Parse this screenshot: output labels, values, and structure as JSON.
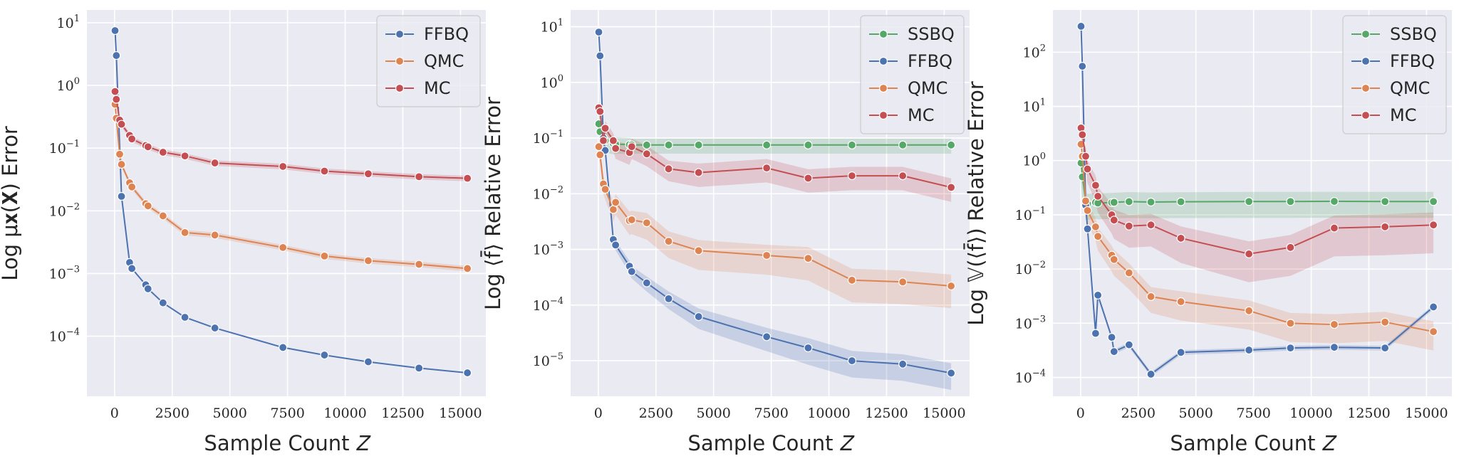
{
  "colors": {
    "SSBQ": "#55a868",
    "FFBQ": "#4c72b0",
    "QMC": "#dd8452",
    "MC": "#c44e52",
    "panel_bg": "#eaeaf2",
    "grid": "#ffffff"
  },
  "chart_data": [
    {
      "type": "line",
      "yscale": "log",
      "xlim": [
        -1200,
        16100
      ],
      "ylim": [
        1.1e-05,
        16
      ],
      "x_ticks": [
        "0",
        "2500",
        "5000",
        "7500",
        "10000",
        "12500",
        "15000"
      ],
      "y_ticks": [
        {
          "base": "10",
          "exp": "−4"
        },
        {
          "base": "10",
          "exp": "−3"
        },
        {
          "base": "10",
          "exp": "−2"
        },
        {
          "base": "10",
          "exp": "−1"
        },
        {
          "base": "10",
          "exp": "0"
        },
        {
          "base": "10",
          "exp": "1"
        }
      ],
      "xlabel": "Sample Count 𝑍",
      "ylabel": "Log μ𝐱(𝐗) Error",
      "legend": "top-right",
      "grid": true,
      "series": [
        {
          "name": "FFBQ",
          "x": [
            20,
            75,
            300,
            650,
            750,
            1350,
            1450,
            2100,
            3050,
            4350,
            7300,
            9100,
            11000,
            13200,
            15300
          ],
          "y": [
            7.5,
            3,
            0.017,
            0.0015,
            0.0012,
            0.00066,
            0.00057,
            0.00034,
            0.0002,
            0.000135,
            6.6e-05,
            5e-05,
            3.9e-05,
            3.1e-05,
            2.6e-05
          ],
          "band": []
        },
        {
          "name": "QMC",
          "x": [
            20,
            75,
            220,
            300,
            650,
            750,
            1350,
            1450,
            2100,
            3050,
            4350,
            7300,
            9100,
            11000,
            13200,
            15300
          ],
          "y": [
            0.5,
            0.3,
            0.08,
            0.055,
            0.028,
            0.024,
            0.013,
            0.012,
            0.0083,
            0.0045,
            0.0041,
            0.0026,
            0.0019,
            0.0016,
            0.0014,
            0.0012
          ],
          "band": [
            0.08,
            0.1
          ]
        },
        {
          "name": "MC",
          "x": [
            20,
            75,
            220,
            300,
            650,
            750,
            1350,
            1450,
            2100,
            3050,
            4350,
            7300,
            9100,
            11000,
            13200,
            15300
          ],
          "y": [
            0.8,
            0.6,
            0.28,
            0.24,
            0.16,
            0.14,
            0.11,
            0.105,
            0.086,
            0.075,
            0.058,
            0.051,
            0.043,
            0.039,
            0.035,
            0.033
          ],
          "band": [
            0.08,
            0.1
          ]
        }
      ]
    },
    {
      "type": "line",
      "yscale": "log",
      "xlim": [
        -1200,
        16100
      ],
      "ylim": [
        2.3e-06,
        20
      ],
      "x_ticks": [
        "0",
        "2500",
        "5000",
        "7500",
        "10000",
        "12500",
        "15000"
      ],
      "y_ticks": [
        {
          "base": "10",
          "exp": "−5"
        },
        {
          "base": "10",
          "exp": "−4"
        },
        {
          "base": "10",
          "exp": "−3"
        },
        {
          "base": "10",
          "exp": "−2"
        },
        {
          "base": "10",
          "exp": "−1"
        },
        {
          "base": "10",
          "exp": "0"
        },
        {
          "base": "10",
          "exp": "1"
        }
      ],
      "xlabel": "Sample Count 𝑍",
      "ylabel": "Log ⟨f̄⟩ Relative Error",
      "legend": "top-right",
      "grid": true,
      "series": [
        {
          "name": "SSBQ",
          "x": [
            20,
            75,
            220,
            300,
            650,
            750,
            1350,
            1450,
            2100,
            3050,
            4350,
            7300,
            9100,
            11000,
            13200,
            15300
          ],
          "y": [
            0.18,
            0.13,
            0.1,
            0.09,
            0.08,
            0.078,
            0.076,
            0.075,
            0.075,
            0.075,
            0.075,
            0.075,
            0.075,
            0.075,
            0.075,
            0.075
          ],
          "band": [
            0.5,
            0.5,
            0.45,
            0.4,
            0.36,
            0.33,
            0.32,
            0.3,
            0.3,
            0.3,
            0.3,
            0.3,
            0.3,
            0.3,
            0.3,
            0.3
          ]
        },
        {
          "name": "FFBQ",
          "x": [
            20,
            75,
            220,
            300,
            650,
            750,
            1350,
            1450,
            2100,
            3050,
            4350,
            7300,
            9100,
            11000,
            13200,
            15300
          ],
          "y": [
            8,
            3,
            0.1,
            0.06,
            0.0015,
            0.0012,
            0.0005,
            0.0004,
            0.00025,
            0.00013,
            6.2e-05,
            2.7e-05,
            1.7e-05,
            1e-05,
            8.7e-06,
            6e-06
          ],
          "band": [
            0.1,
            0.1,
            0.15,
            0.15,
            0.2,
            0.2,
            0.25,
            0.25,
            0.3,
            0.35,
            0.4,
            0.45,
            0.5,
            0.5,
            0.5,
            0.5
          ]
        },
        {
          "name": "QMC",
          "x": [
            20,
            75,
            220,
            300,
            650,
            750,
            1350,
            1450,
            2100,
            3050,
            4350,
            7300,
            9100,
            11000,
            13200,
            15300
          ],
          "y": [
            0.07,
            0.05,
            0.015,
            0.012,
            0.0052,
            0.007,
            0.0033,
            0.0034,
            0.003,
            0.0014,
            0.00095,
            0.00078,
            0.00069,
            0.00028,
            0.00026,
            0.00022
          ],
          "band": [
            0.3,
            0.3,
            0.35,
            0.35,
            0.4,
            0.4,
            0.45,
            0.45,
            0.5,
            0.5,
            0.55,
            0.55,
            0.6,
            0.6,
            0.6,
            0.6
          ]
        },
        {
          "name": "MC",
          "x": [
            20,
            75,
            220,
            300,
            650,
            750,
            1350,
            1450,
            2100,
            3050,
            4350,
            7300,
            9100,
            11000,
            13200,
            15300
          ],
          "y": [
            0.35,
            0.3,
            0.09,
            0.15,
            0.09,
            0.065,
            0.055,
            0.07,
            0.052,
            0.028,
            0.024,
            0.029,
            0.019,
            0.021,
            0.021,
            0.013
          ],
          "band": [
            0.3,
            0.3,
            0.35,
            0.35,
            0.35,
            0.35,
            0.4,
            0.4,
            0.4,
            0.4,
            0.45,
            0.45,
            0.45,
            0.45,
            0.45,
            0.45
          ]
        }
      ]
    },
    {
      "type": "line",
      "yscale": "log",
      "xlim": [
        -1200,
        16100
      ],
      "ylim": [
        4.5e-05,
        600
      ],
      "x_ticks": [
        "0",
        "2500",
        "5000",
        "7500",
        "10000",
        "12500",
        "15000"
      ],
      "y_ticks": [
        {
          "base": "10",
          "exp": "−4"
        },
        {
          "base": "10",
          "exp": "−3"
        },
        {
          "base": "10",
          "exp": "−2"
        },
        {
          "base": "10",
          "exp": "−1"
        },
        {
          "base": "10",
          "exp": "0"
        },
        {
          "base": "10",
          "exp": "1"
        },
        {
          "base": "10",
          "exp": "2"
        }
      ],
      "xlabel": "Sample Count 𝑍",
      "ylabel": "Log 𝕍(⟨f̄⟩) Relative Error",
      "legend": "top-right",
      "grid": true,
      "series": [
        {
          "name": "SSBQ",
          "x": [
            20,
            75,
            220,
            300,
            650,
            750,
            1350,
            1450,
            2100,
            3050,
            4350,
            7300,
            9100,
            11000,
            13200,
            15300
          ],
          "y": [
            0.9,
            0.5,
            0.18,
            0.16,
            0.17,
            0.165,
            0.168,
            0.17,
            0.175,
            0.172,
            0.174,
            0.176,
            0.176,
            0.177,
            0.176,
            0.176
          ],
          "band": [
            0.6,
            0.6,
            0.55,
            0.5,
            0.5,
            0.5,
            0.5,
            0.5,
            0.5,
            0.5,
            0.5,
            0.5,
            0.5,
            0.5,
            0.5,
            0.5
          ]
        },
        {
          "name": "FFBQ",
          "x": [
            20,
            75,
            220,
            300,
            650,
            750,
            1350,
            1450,
            2100,
            3050,
            4350,
            7300,
            9100,
            11000,
            13200,
            15300
          ],
          "y": [
            300,
            55,
            0.15,
            0.055,
            0.00065,
            0.0033,
            0.00055,
            0.0003,
            0.0004,
            0.000115,
            0.00029,
            0.00032,
            0.00035,
            0.00036,
            0.00035,
            0.002
          ],
          "band": [
            0.1,
            0.1,
            0.1,
            0.1,
            0.1,
            0.1,
            0.1,
            0.1,
            0.1,
            0.1,
            0.1,
            0.1,
            0.1,
            0.1,
            0.1,
            0.1
          ]
        },
        {
          "name": "QMC",
          "x": [
            20,
            75,
            220,
            300,
            650,
            750,
            1350,
            1450,
            2100,
            3050,
            4350,
            7300,
            9100,
            11000,
            13200,
            15300
          ],
          "y": [
            2,
            1.2,
            0.18,
            0.12,
            0.06,
            0.04,
            0.018,
            0.015,
            0.0085,
            0.0031,
            0.0025,
            0.0017,
            0.001,
            0.00095,
            0.00105,
            0.0007
          ],
          "band": [
            0.4,
            0.4,
            0.4,
            0.4,
            0.45,
            0.45,
            0.5,
            0.5,
            0.5,
            0.5,
            0.55,
            0.55,
            0.55,
            0.55,
            0.55,
            0.55
          ]
        },
        {
          "name": "MC",
          "x": [
            20,
            75,
            220,
            300,
            650,
            750,
            1350,
            1450,
            2100,
            3050,
            4350,
            7300,
            9100,
            11000,
            13200,
            15300
          ],
          "y": [
            4,
            3,
            1.2,
            0.7,
            0.35,
            0.22,
            0.1,
            0.08,
            0.062,
            0.065,
            0.037,
            0.019,
            0.025,
            0.057,
            0.06,
            0.065
          ],
          "band": [
            0.4,
            0.4,
            0.45,
            0.45,
            0.5,
            0.5,
            0.55,
            0.55,
            0.6,
            0.6,
            0.65,
            0.7,
            0.7,
            0.7,
            0.7,
            0.7
          ]
        }
      ]
    }
  ]
}
